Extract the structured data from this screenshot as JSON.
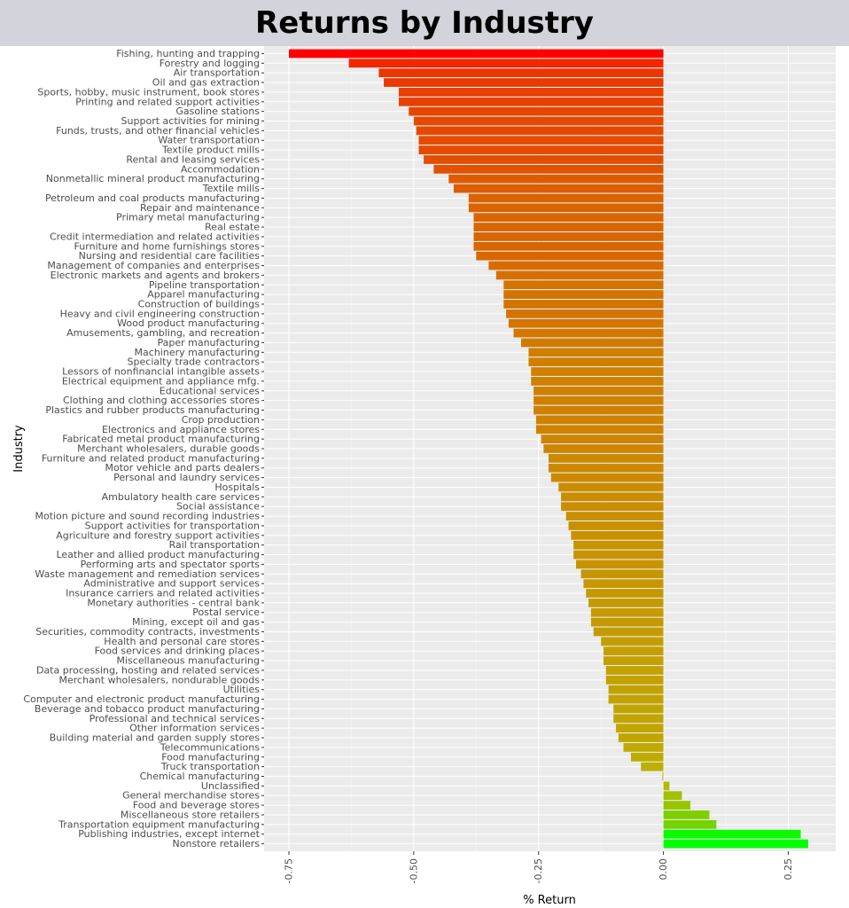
{
  "chart_data": {
    "type": "bar",
    "orientation": "horizontal",
    "title": "Returns by Industry",
    "xlabel": "% Return",
    "ylabel": "Industry",
    "xlim": [
      -0.8,
      0.34
    ],
    "x_ticks": [
      -0.75,
      -0.5,
      -0.25,
      0.0,
      0.25
    ],
    "x_tick_labels": [
      "-0.75",
      "-0.50",
      "-0.25",
      "0.00",
      "0.25"
    ],
    "grid": true,
    "legend": "none",
    "color_scale": {
      "low": "#ff0000",
      "mid": "#b9b900",
      "high": "#00ff00"
    },
    "categories": [
      "Fishing, hunting and trapping",
      "Forestry and logging",
      "Air transportation",
      "Oil and gas extraction",
      "Sports, hobby, music instrument, book stores",
      "Printing and related support activities",
      "Gasoline stations",
      "Support activities for mining",
      "Funds, trusts, and other financial vehicles",
      "Water transportation",
      "Textile product mills",
      "Rental and leasing services",
      "Accommodation",
      "Nonmetallic mineral product manufacturing",
      "Textile mills",
      "Petroleum and coal products manufacturing",
      "Repair and maintenance",
      "Primary metal manufacturing",
      "Real estate",
      "Credit intermediation and related activities",
      "Furniture and home furnishings stores",
      "Nursing and residential care facilities",
      "Management of companies and enterprises",
      "Electronic markets and agents and brokers",
      "Pipeline transportation",
      "Apparel manufacturing",
      "Construction of buildings",
      "Heavy and civil engineering construction",
      "Wood product manufacturing",
      "Amusements, gambling, and recreation",
      "Paper manufacturing",
      "Machinery manufacturing",
      "Specialty trade contractors",
      "Lessors of nonfinancial intangible assets",
      "Electrical equipment and appliance mfg.",
      "Educational services",
      "Clothing and clothing accessories stores",
      "Plastics and rubber products manufacturing",
      "Crop production",
      "Electronics and appliance stores",
      "Fabricated metal product manufacturing",
      "Merchant wholesalers, durable goods",
      "Furniture and related product manufacturing",
      "Motor vehicle and parts dealers",
      "Personal and laundry services",
      "Hospitals",
      "Ambulatory health care services",
      "Social assistance",
      "Motion picture and sound recording industries",
      "Support activities for transportation",
      "Agriculture and forestry support activities",
      "Rail transportation",
      "Leather and allied product manufacturing",
      "Performing arts and spectator sports",
      "Waste management and remediation services",
      "Administrative and support services",
      "Insurance carriers and related activities",
      "Monetary authorities - central bank",
      "Postal service",
      "Mining, except oil and gas",
      "Securities, commodity contracts, investments",
      "Health and personal care stores",
      "Food services and drinking places",
      "Miscellaneous manufacturing",
      "Data processing, hosting and related services",
      "Merchant wholesalers, nondurable goods",
      "Utilities",
      "Computer and electronic product manufacturing",
      "Beverage and tobacco product manufacturing",
      "Professional and technical services",
      "Other information services",
      "Building material and garden supply stores",
      "Telecommunications",
      "Food manufacturing",
      "Truck transportation",
      "Chemical manufacturing",
      "Unclassified",
      "General merchandise stores",
      "Food and beverage stores",
      "Miscellaneous store retailers",
      "Transportation equipment manufacturing",
      "Publishing industries, except internet",
      "Nonstore retailers"
    ],
    "values": [
      -0.75,
      -0.63,
      -0.57,
      -0.56,
      -0.53,
      -0.53,
      -0.51,
      -0.5,
      -0.495,
      -0.49,
      -0.49,
      -0.48,
      -0.46,
      -0.43,
      -0.42,
      -0.39,
      -0.39,
      -0.38,
      -0.38,
      -0.38,
      -0.38,
      -0.375,
      -0.35,
      -0.335,
      -0.32,
      -0.32,
      -0.32,
      -0.315,
      -0.31,
      -0.3,
      -0.285,
      -0.27,
      -0.27,
      -0.265,
      -0.265,
      -0.26,
      -0.26,
      -0.26,
      -0.255,
      -0.255,
      -0.245,
      -0.24,
      -0.23,
      -0.23,
      -0.225,
      -0.21,
      -0.205,
      -0.205,
      -0.195,
      -0.19,
      -0.185,
      -0.18,
      -0.18,
      -0.175,
      -0.165,
      -0.16,
      -0.155,
      -0.15,
      -0.145,
      -0.145,
      -0.14,
      -0.125,
      -0.12,
      -0.12,
      -0.115,
      -0.115,
      -0.11,
      -0.11,
      -0.1,
      -0.1,
      -0.095,
      -0.09,
      -0.08,
      -0.065,
      -0.045,
      -0.002,
      0.012,
      0.037,
      0.054,
      0.092,
      0.106,
      0.275,
      0.29
    ]
  }
}
